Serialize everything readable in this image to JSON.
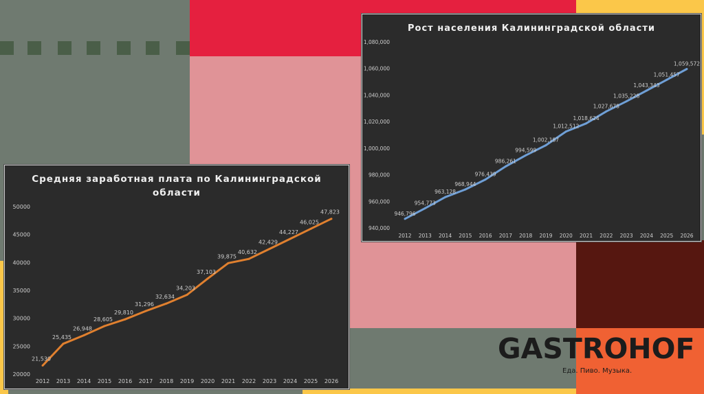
{
  "colors": {
    "sage": "#6f7a70",
    "red": "#e5203f",
    "pink": "#e09397",
    "yellow": "#fbc749",
    "maroon": "#561710",
    "orange": "#f06133",
    "dash": "#4a5e48",
    "chart_bg": "#2b2b2b",
    "salary_line": "#e0802f",
    "population_line": "#6f9fd6"
  },
  "brand": {
    "logo": "GASTROHOF",
    "tagline": "Еда. Пиво. Музыка."
  },
  "chart_data": [
    {
      "type": "line",
      "title": "Средняя заработная плата по Калининградской области",
      "title_lines": [
        "Средняя заработная плата по Калининградской",
        "области"
      ],
      "x": [
        "2012",
        "2013",
        "2014",
        "2015",
        "2016",
        "2017",
        "2018",
        "2019",
        "2020",
        "2021",
        "2022",
        "2023",
        "2024",
        "2025",
        "2026"
      ],
      "series": [
        {
          "values": [
            21530,
            25435,
            26948,
            28605,
            29810,
            31296,
            32634,
            34203,
            37103,
            39875,
            40632,
            42429,
            44227,
            46025,
            47823
          ]
        }
      ],
      "data_labels": [
        "21,530",
        "25,435",
        "26,948",
        "28,605",
        "29,810",
        "31,296",
        "32,634",
        "34,203",
        "37,103",
        "39,875",
        "40,632",
        "42,429",
        "44,227",
        "46,025",
        "47,823"
      ],
      "y_ticks": [
        "20000",
        "25000",
        "30000",
        "35000",
        "40000",
        "45000",
        "50000"
      ],
      "ylim": [
        20000,
        50000
      ],
      "grid": false,
      "legend": "none"
    },
    {
      "type": "line",
      "title": "Рост населения Калининградской области",
      "title_lines": [
        "Рост населения Калининградской области"
      ],
      "x": [
        "2012",
        "2013",
        "2014",
        "2015",
        "2016",
        "2017",
        "2018",
        "2019",
        "2020",
        "2021",
        "2022",
        "2023",
        "2024",
        "2025",
        "2026"
      ],
      "series": [
        {
          "values": [
            946796,
            954773,
            963128,
            968944,
            976439,
            986261,
            994599,
            1002187,
            1012512,
            1018624,
            1027678,
            1035228,
            1043343,
            1051457,
            1059572
          ]
        }
      ],
      "data_labels": [
        "946,796",
        "954,773",
        "963,128",
        "968,944",
        "976,439",
        "986,261",
        "994,599",
        "1,002,187",
        "1,012,512",
        "1,018,624",
        "1,027,678",
        "1,035,228",
        "1,043,343",
        "1,051,457",
        "1,059,572"
      ],
      "y_ticks": [
        "940,000",
        "960,000",
        "980,000",
        "1,000,000",
        "1,020,000",
        "1,040,000",
        "1,060,000",
        "1,080,000"
      ],
      "ylim": [
        940000,
        1080000
      ],
      "grid": false,
      "legend": "none"
    }
  ]
}
